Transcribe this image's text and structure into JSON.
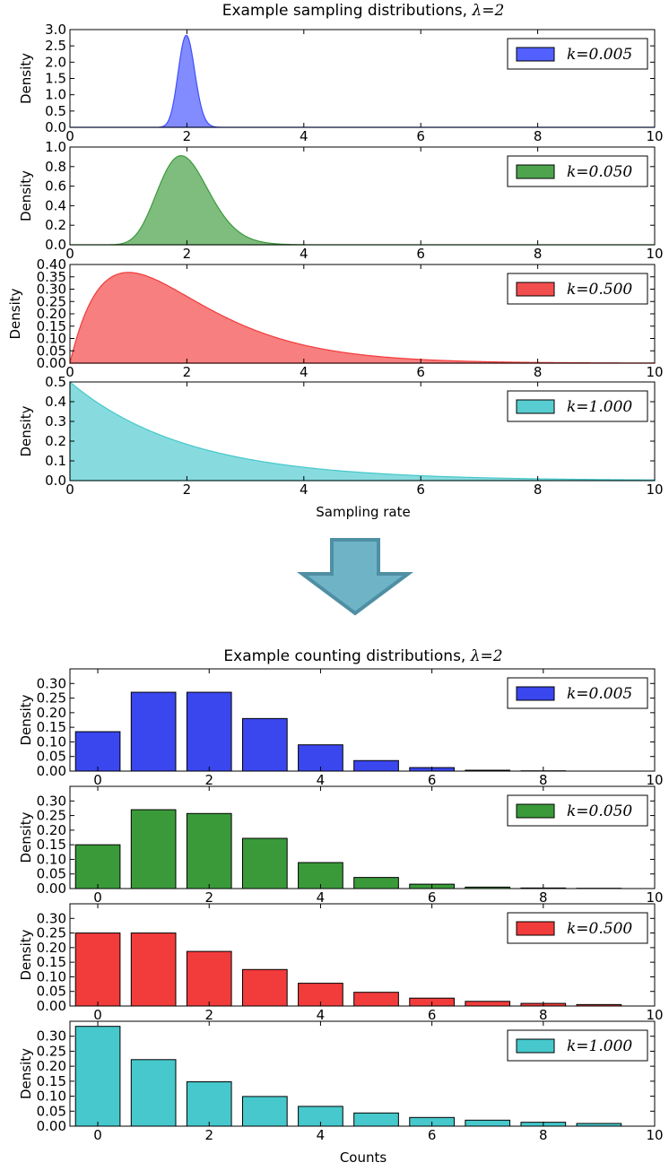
{
  "figure": {
    "top_title_prefix": "Example sampling distributions, ",
    "top_title_math": "λ=2",
    "bottom_title_prefix": "Example counting distributions, ",
    "bottom_title_math": "λ=2",
    "ylabel": "Density",
    "top_xlabel": "Sampling rate",
    "bottom_xlabel": "Counts",
    "arrow_color": "#6fb3c7",
    "arrow_edge_color": "#4f8fa3",
    "arrow_icon": "down-arrow-icon"
  },
  "chart_data": [
    {
      "type": "area",
      "title": "Example sampling distributions, λ=2",
      "xlabel": "",
      "ylabel": "Density",
      "xlim": [
        0,
        10
      ],
      "ylim": [
        0,
        3.0
      ],
      "xticks": [
        "0",
        "2",
        "4",
        "6",
        "8",
        "10"
      ],
      "yticks": [
        "0.0",
        "0.5",
        "1.0",
        "1.5",
        "2.0",
        "2.5",
        "3.0"
      ],
      "legend": "top-right",
      "legend_label": "k=0.005",
      "color": "#3f4fff",
      "series": [
        {
          "name": "k=0.005",
          "shape": "gamma",
          "k": 0.005,
          "lambda": 2,
          "peak": 2.85
        }
      ]
    },
    {
      "type": "area",
      "xlabel": "",
      "ylabel": "Density",
      "xlim": [
        0,
        10
      ],
      "ylim": [
        0,
        1.0
      ],
      "xticks": [
        "0",
        "2",
        "4",
        "6",
        "8",
        "10"
      ],
      "yticks": [
        "0.0",
        "0.2",
        "0.4",
        "0.6",
        "0.8",
        "1.0"
      ],
      "legend": "top-right",
      "legend_label": "k=0.050",
      "color": "#3a9a3a",
      "series": [
        {
          "name": "k=0.050",
          "shape": "gamma",
          "k": 0.05,
          "lambda": 2,
          "peak": 0.91
        }
      ]
    },
    {
      "type": "area",
      "xlabel": "",
      "ylabel": "Density",
      "xlim": [
        0,
        10
      ],
      "ylim": [
        0,
        0.4
      ],
      "xticks": [
        "0",
        "2",
        "4",
        "6",
        "8",
        "10"
      ],
      "yticks": [
        "0.00",
        "0.05",
        "0.10",
        "0.15",
        "0.20",
        "0.25",
        "0.30",
        "0.35",
        "0.40"
      ],
      "legend": "top-right",
      "legend_label": "k=0.500",
      "color": "#f23b3b",
      "series": [
        {
          "name": "k=0.500",
          "shape": "gamma",
          "k": 0.5,
          "lambda": 2,
          "peak": 0.37
        }
      ]
    },
    {
      "type": "area",
      "xlabel": "Sampling rate",
      "ylabel": "Density",
      "xlim": [
        0,
        10
      ],
      "ylim": [
        0,
        0.5
      ],
      "xticks": [
        "0",
        "2",
        "4",
        "6",
        "8",
        "10"
      ],
      "yticks": [
        "0.0",
        "0.1",
        "0.2",
        "0.3",
        "0.4",
        "0.5"
      ],
      "legend": "top-right",
      "legend_label": "k=1.000",
      "color": "#46c8cc",
      "series": [
        {
          "name": "k=1.000",
          "shape": "exponential",
          "k": 1.0,
          "lambda": 2,
          "peak": 0.5
        }
      ]
    },
    {
      "type": "bar",
      "title": "Example counting distributions, λ=2",
      "xlabel": "",
      "ylabel": "Density",
      "xlim": [
        -0.5,
        10
      ],
      "ylim": [
        0,
        0.35
      ],
      "xticks": [
        "0",
        "2",
        "4",
        "6",
        "8",
        "10"
      ],
      "yticks": [
        "0.00",
        "0.05",
        "0.10",
        "0.15",
        "0.20",
        "0.25",
        "0.30"
      ],
      "legend": "top-right",
      "legend_label": "k=0.005",
      "color": "#3a46ee",
      "categories": [
        0,
        1,
        2,
        3,
        4,
        5,
        6,
        7,
        8,
        9
      ],
      "values": [
        0.135,
        0.27,
        0.27,
        0.18,
        0.09,
        0.036,
        0.012,
        0.003,
        0.001,
        0.0
      ],
      "series": [
        {
          "name": "k=0.005",
          "values": [
            0.135,
            0.27,
            0.27,
            0.18,
            0.09,
            0.036,
            0.012,
            0.003,
            0.001,
            0.0
          ]
        }
      ]
    },
    {
      "type": "bar",
      "xlabel": "",
      "ylabel": "Density",
      "xlim": [
        -0.5,
        10
      ],
      "ylim": [
        0,
        0.35
      ],
      "xticks": [
        "0",
        "2",
        "4",
        "6",
        "8",
        "10"
      ],
      "yticks": [
        "0.00",
        "0.05",
        "0.10",
        "0.15",
        "0.20",
        "0.25",
        "0.30"
      ],
      "legend": "top-right",
      "legend_label": "k=0.050",
      "color": "#3a9a3a",
      "categories": [
        0,
        1,
        2,
        3,
        4,
        5,
        6,
        7,
        8,
        9
      ],
      "values": [
        0.15,
        0.27,
        0.257,
        0.172,
        0.089,
        0.038,
        0.015,
        0.005,
        0.002,
        0.001
      ],
      "series": [
        {
          "name": "k=0.050",
          "values": [
            0.15,
            0.27,
            0.257,
            0.172,
            0.089,
            0.038,
            0.015,
            0.005,
            0.002,
            0.001
          ]
        }
      ]
    },
    {
      "type": "bar",
      "xlabel": "",
      "ylabel": "Density",
      "xlim": [
        -0.5,
        10
      ],
      "ylim": [
        0,
        0.35
      ],
      "xticks": [
        "0",
        "2",
        "4",
        "6",
        "8",
        "10"
      ],
      "yticks": [
        "0.00",
        "0.05",
        "0.10",
        "0.15",
        "0.20",
        "0.25",
        "0.30"
      ],
      "legend": "top-right",
      "legend_label": "k=0.500",
      "color": "#f23b3b",
      "categories": [
        0,
        1,
        2,
        3,
        4,
        5,
        6,
        7,
        8,
        9
      ],
      "values": [
        0.25,
        0.25,
        0.187,
        0.125,
        0.078,
        0.047,
        0.027,
        0.016,
        0.009,
        0.005
      ],
      "series": [
        {
          "name": "k=0.500",
          "values": [
            0.25,
            0.25,
            0.187,
            0.125,
            0.078,
            0.047,
            0.027,
            0.016,
            0.009,
            0.005
          ]
        }
      ]
    },
    {
      "type": "bar",
      "xlabel": "Counts",
      "ylabel": "Density",
      "xlim": [
        -0.5,
        10
      ],
      "ylim": [
        0,
        0.35
      ],
      "xticks": [
        "0",
        "2",
        "4",
        "6",
        "8",
        "10"
      ],
      "yticks": [
        "0.00",
        "0.05",
        "0.10",
        "0.15",
        "0.20",
        "0.25",
        "0.30"
      ],
      "legend": "top-right",
      "legend_label": "k=1.000",
      "color": "#46c8cc",
      "categories": [
        0,
        1,
        2,
        3,
        4,
        5,
        6,
        7,
        8,
        9
      ],
      "values": [
        0.333,
        0.222,
        0.148,
        0.099,
        0.066,
        0.044,
        0.029,
        0.02,
        0.013,
        0.009
      ],
      "series": [
        {
          "name": "k=1.000",
          "values": [
            0.333,
            0.222,
            0.148,
            0.099,
            0.066,
            0.044,
            0.029,
            0.02,
            0.013,
            0.009
          ]
        }
      ]
    }
  ]
}
